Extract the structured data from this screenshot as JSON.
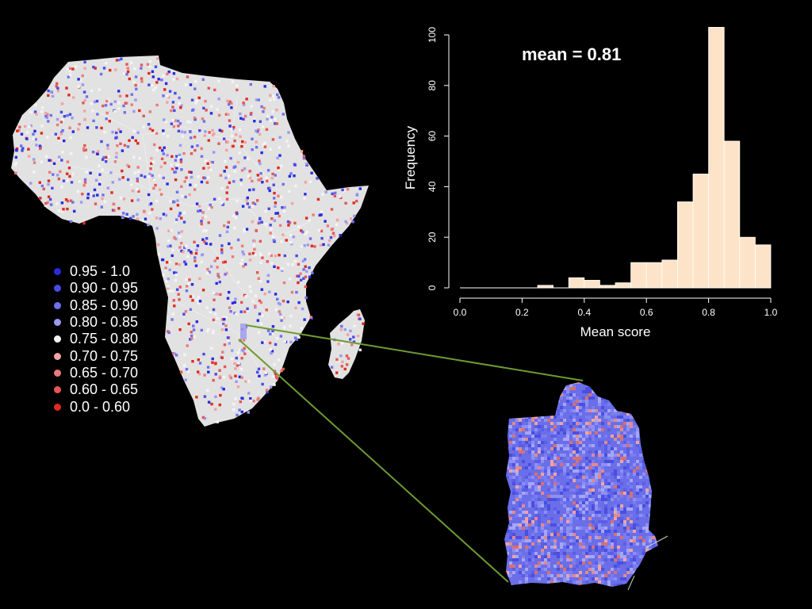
{
  "map_legend": {
    "items": [
      {
        "label": "0.95 - 1.0",
        "color": "#2a2ae0"
      },
      {
        "label": "0.90 - 0.95",
        "color": "#4a4ae8"
      },
      {
        "label": "0.85 - 0.90",
        "color": "#7070ee"
      },
      {
        "label": "0.80 - 0.85",
        "color": "#9a9af2"
      },
      {
        "label": "0.75 - 0.80",
        "color": "#f4f4f4"
      },
      {
        "label": "0.70 - 0.75",
        "color": "#f0a3a3"
      },
      {
        "label": "0.65 - 0.70",
        "color": "#ea7b7b"
      },
      {
        "label": "0.60 - 0.65",
        "color": "#e65656"
      },
      {
        "label": "0.0 - 0.60",
        "color": "#e02a1e"
      }
    ]
  },
  "colors": {
    "background": "#000000",
    "land": "#e2e2e2",
    "bar_fill": "#fde4c8",
    "connector": "#6f9a32",
    "region_base": "#6a6ee8"
  },
  "chart_data": {
    "type": "bar",
    "title": "",
    "annotation": "mean = 0.81",
    "xlabel": "Mean score",
    "ylabel": "Frequency",
    "xlim": [
      0.0,
      1.0
    ],
    "ylim": [
      0,
      100
    ],
    "x_ticks": [
      "0.0",
      "0.2",
      "0.4",
      "0.6",
      "0.8",
      "1.0"
    ],
    "y_ticks": [
      "0",
      "20",
      "40",
      "60",
      "80",
      "100"
    ],
    "bin_width": 0.05,
    "bin_starts": [
      0.0,
      0.05,
      0.1,
      0.15,
      0.2,
      0.25,
      0.3,
      0.35,
      0.4,
      0.45,
      0.5,
      0.55,
      0.6,
      0.65,
      0.7,
      0.75,
      0.8,
      0.85,
      0.9,
      0.95
    ],
    "values": [
      0,
      0,
      0,
      0,
      0,
      1,
      0,
      4,
      3,
      1,
      2,
      10,
      10,
      11,
      34,
      45,
      103,
      58,
      20,
      17
    ],
    "grid": false
  }
}
